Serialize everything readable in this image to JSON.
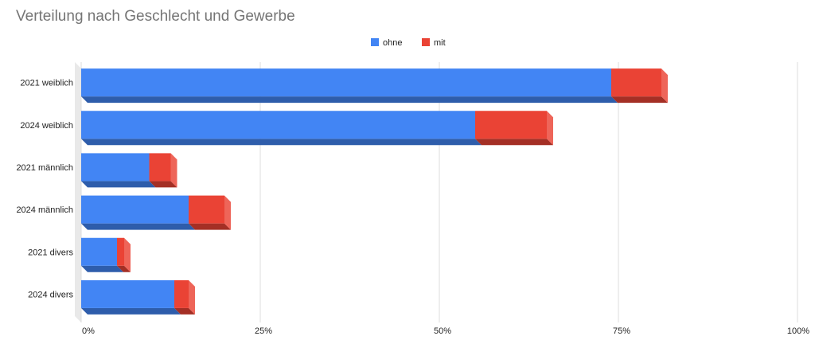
{
  "chart_data": {
    "type": "bar",
    "orientation": "horizontal",
    "stacked": true,
    "percent_axis": true,
    "style_3d": true,
    "title": "Verteilung nach Geschlecht und Gewerbe",
    "categories": [
      "2021 weiblich",
      "2024 weiblich",
      "2021 männlich",
      "2024 männlich",
      "2021 divers",
      "2024 divers"
    ],
    "series": [
      {
        "name": "ohne",
        "color": "#4285f4",
        "values": [
          74,
          55,
          9.5,
          15,
          5,
          13
        ]
      },
      {
        "name": "mit",
        "color": "#ea4335",
        "values": [
          7,
          10,
          3,
          5,
          1,
          2
        ]
      }
    ],
    "xlim": [
      0,
      100
    ],
    "x_ticks": [
      "0%",
      "25%",
      "50%",
      "75%",
      "100%"
    ],
    "x_tick_values": [
      0,
      25,
      50,
      75,
      100
    ],
    "grid": true,
    "legend_position": "top"
  }
}
